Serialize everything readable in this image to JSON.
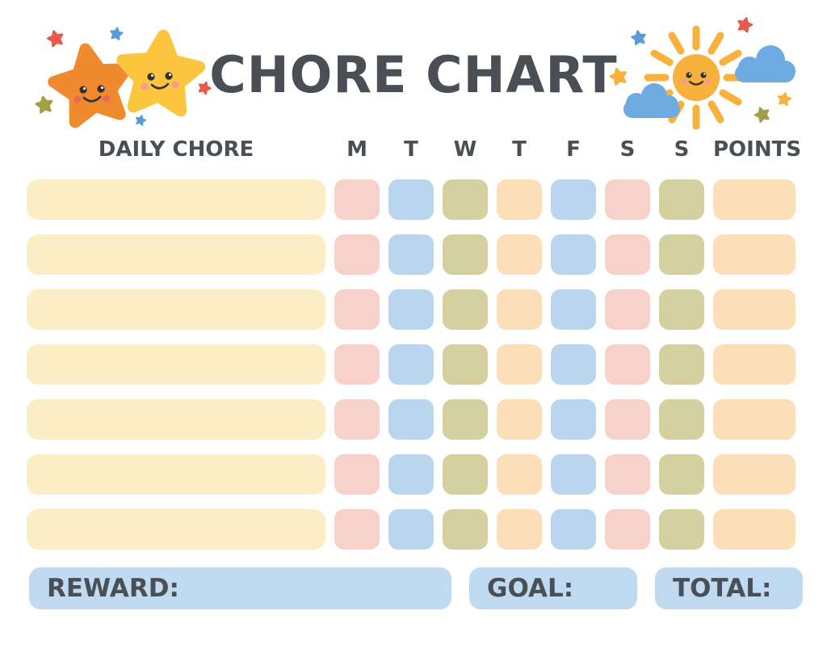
{
  "title": "CHORE CHART",
  "table": {
    "chore_header": "DAILY CHORE",
    "day_headers": [
      "M",
      "T",
      "W",
      "T",
      "F",
      "S",
      "S"
    ],
    "points_header": "POINTS",
    "rows": [
      {
        "chore": "",
        "day_colors": [
          "pink",
          "blue",
          "olive",
          "peach",
          "blue",
          "pink",
          "olive"
        ],
        "points_color": "peach"
      },
      {
        "chore": "",
        "day_colors": [
          "pink",
          "blue",
          "olive",
          "peach",
          "blue",
          "pink",
          "olive"
        ],
        "points_color": "peach"
      },
      {
        "chore": "",
        "day_colors": [
          "pink",
          "blue",
          "olive",
          "peach",
          "blue",
          "pink",
          "olive"
        ],
        "points_color": "peach"
      },
      {
        "chore": "",
        "day_colors": [
          "pink",
          "blue",
          "olive",
          "peach",
          "blue",
          "pink",
          "olive"
        ],
        "points_color": "peach"
      },
      {
        "chore": "",
        "day_colors": [
          "pink",
          "blue",
          "olive",
          "peach",
          "blue",
          "pink",
          "olive"
        ],
        "points_color": "peach"
      },
      {
        "chore": "",
        "day_colors": [
          "pink",
          "blue",
          "olive",
          "peach",
          "blue",
          "pink",
          "olive"
        ],
        "points_color": "peach"
      },
      {
        "chore": "",
        "day_colors": [
          "pink",
          "blue",
          "olive",
          "peach",
          "blue",
          "pink",
          "olive"
        ],
        "points_color": "peach"
      }
    ],
    "chore_row_color": "cream"
  },
  "footer": {
    "reward_label": "REWARD:",
    "goal_label": "GOAL:",
    "total_label": "TOTAL:"
  },
  "colors": {
    "text": "#4a4f55",
    "pink": "#f9d1cb",
    "blue": "#b9d6ee",
    "olive": "#d4d0a0",
    "peach": "#fcdfb9",
    "cream": "#fbeec6",
    "footer_blue": "#bfdaf1",
    "star_orange": "#f08a2f",
    "star_yellow": "#fbc53d",
    "sun_yellow": "#f8b13d",
    "cloud_blue": "#6dabe0",
    "accent_red": "#e85a4d",
    "accent_blue": "#5b9cd8",
    "accent_olive": "#a49e45",
    "face_dark": "#312f2f",
    "cheek_red": "#e96a4e",
    "cheek_pink": "#f49c92",
    "glint_white": "#ffffff"
  }
}
